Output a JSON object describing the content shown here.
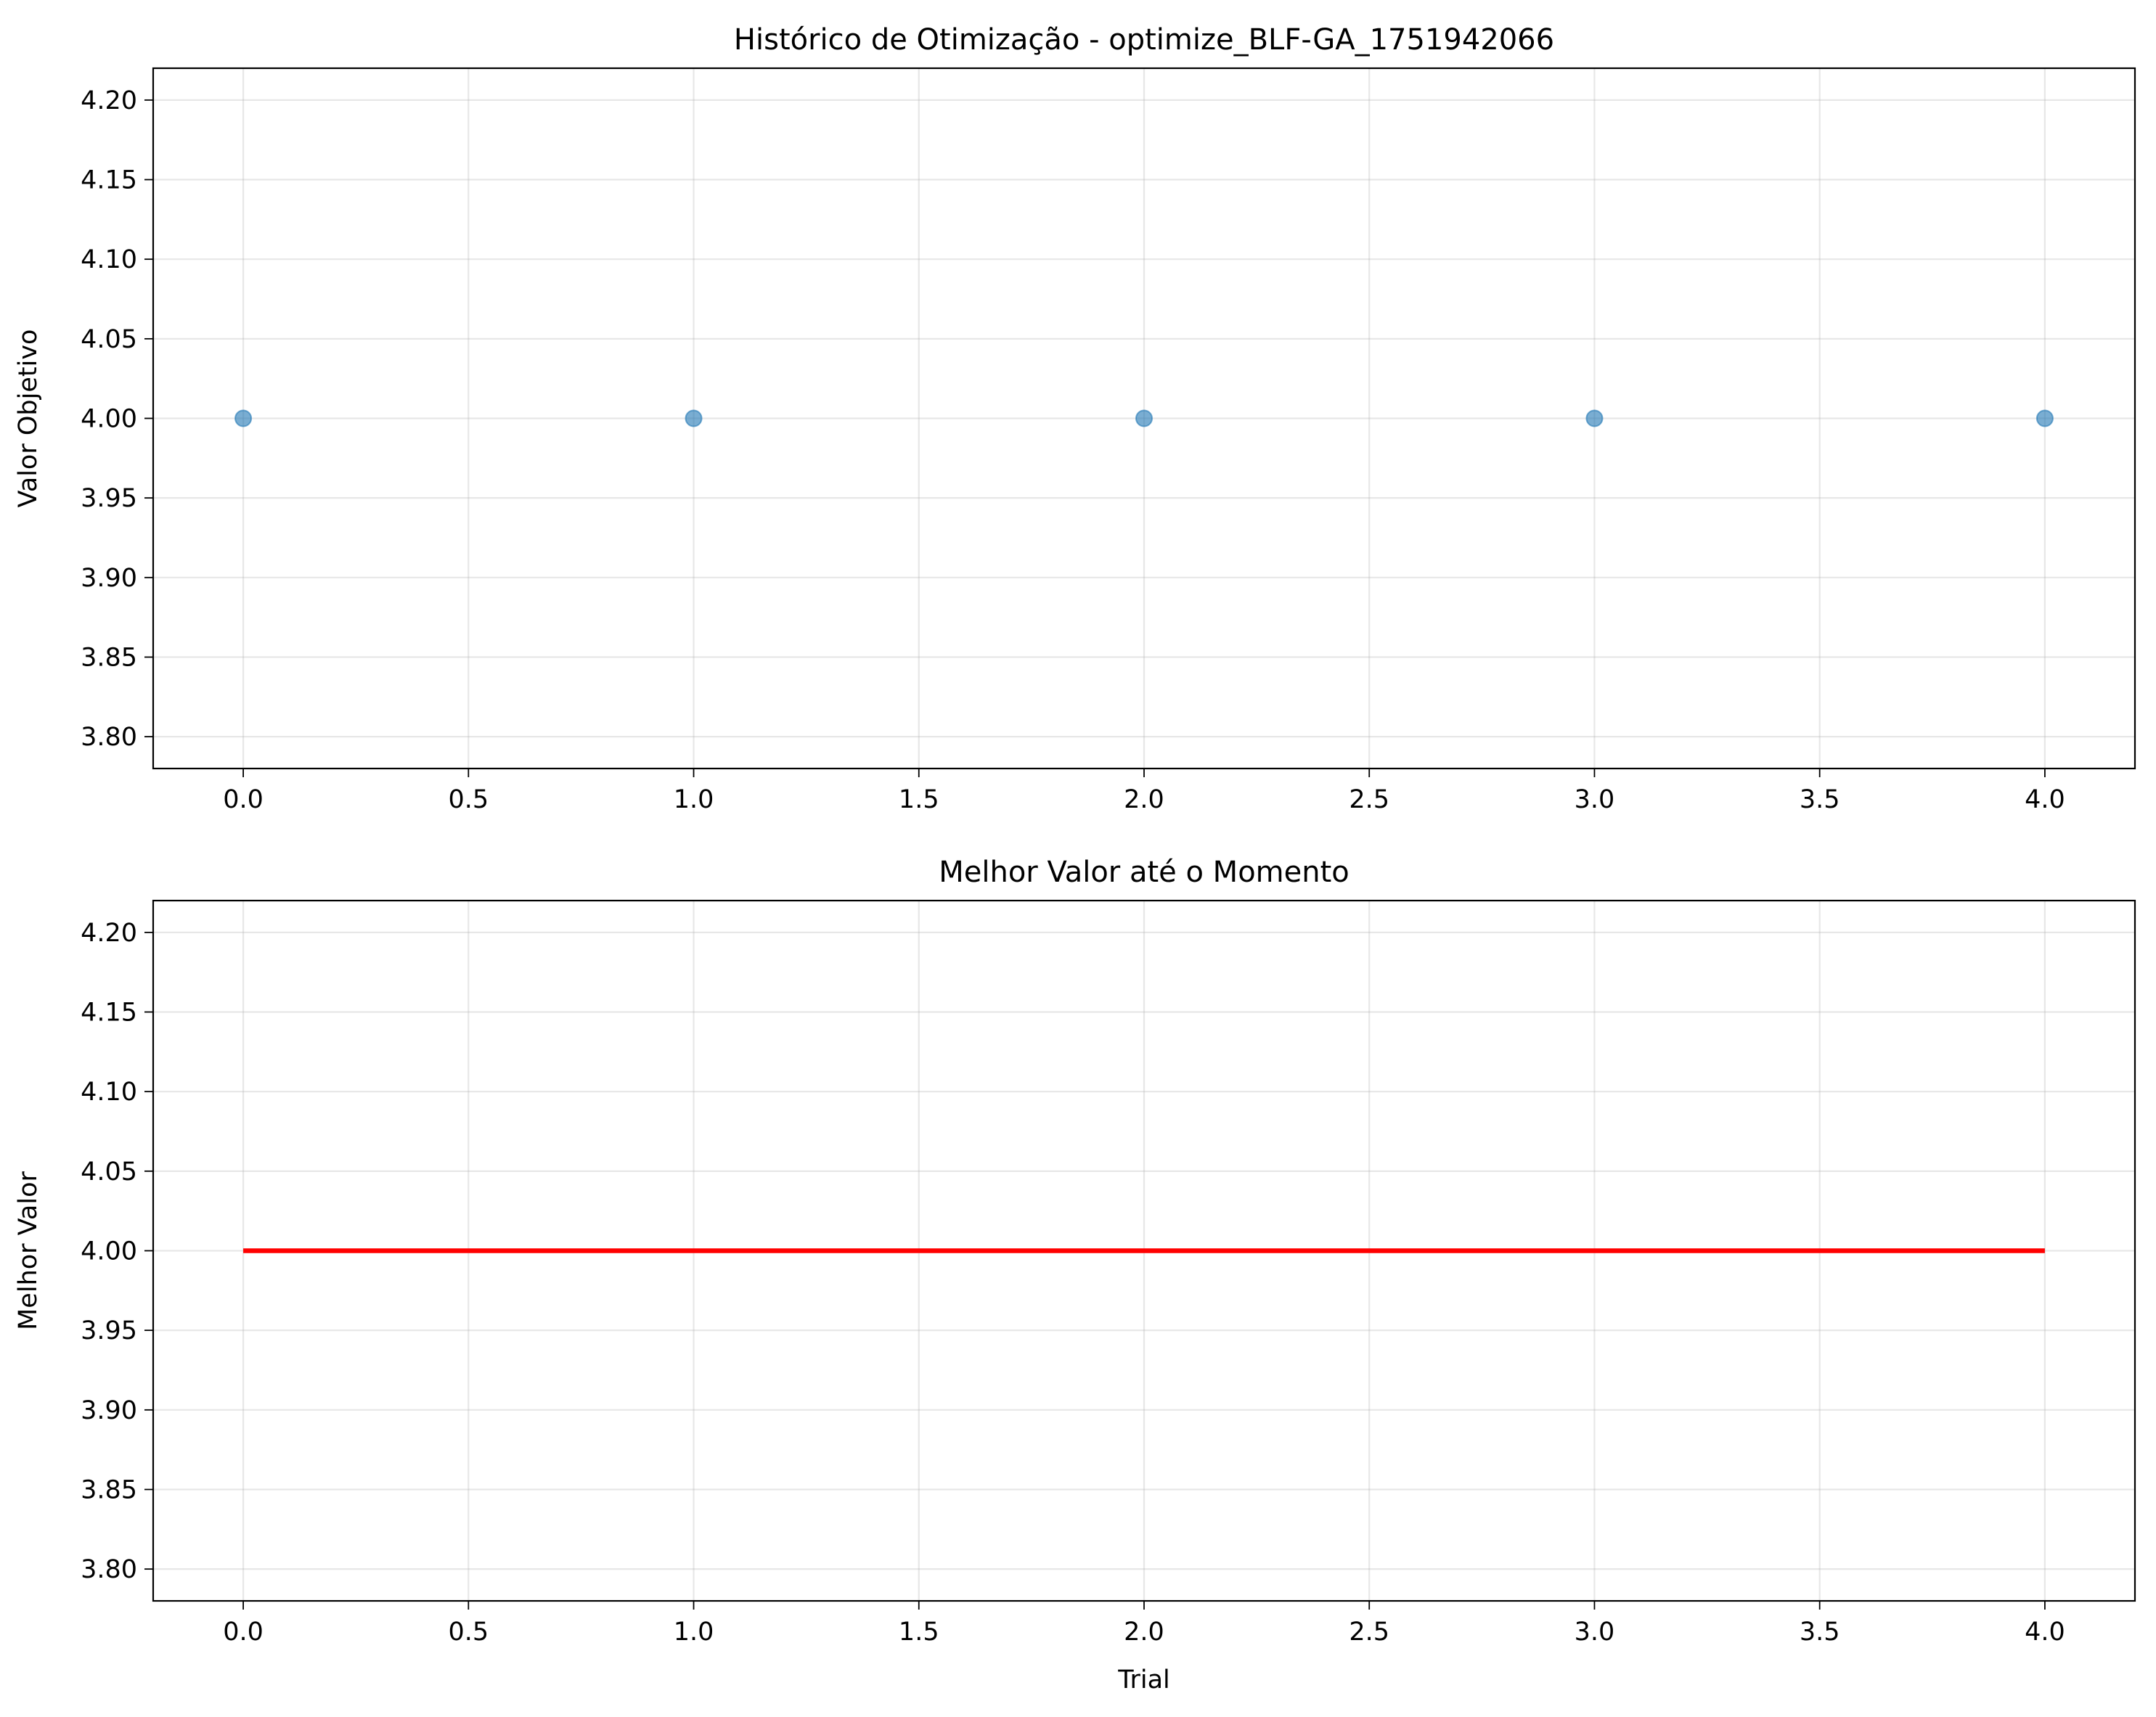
{
  "chart_data": [
    {
      "type": "scatter",
      "title": "Histórico de Otimização - optimize_BLF-GA_1751942066",
      "xlabel": "",
      "ylabel": "Valor Objetivo",
      "xlim": [
        -0.2,
        4.2
      ],
      "ylim": [
        3.78,
        4.22
      ],
      "xticks": [
        0.0,
        0.5,
        1.0,
        1.5,
        2.0,
        2.5,
        3.0,
        3.5,
        4.0
      ],
      "xtick_labels": [
        "0.0",
        "0.5",
        "1.0",
        "1.5",
        "2.0",
        "2.5",
        "3.0",
        "3.5",
        "4.0"
      ],
      "yticks": [
        3.8,
        3.85,
        3.9,
        3.95,
        4.0,
        4.05,
        4.1,
        4.15,
        4.2
      ],
      "ytick_labels": [
        "3.80",
        "3.85",
        "3.90",
        "3.95",
        "4.00",
        "4.05",
        "4.10",
        "4.15",
        "4.20"
      ],
      "grid": true,
      "series": [
        {
          "x": [
            0,
            1,
            2,
            3,
            4
          ],
          "values": [
            4.0,
            4.0,
            4.0,
            4.0,
            4.0
          ],
          "color": "#1f77b4",
          "opacity": 0.6
        }
      ]
    },
    {
      "type": "line",
      "title": "Melhor Valor até o Momento",
      "xlabel": "Trial",
      "ylabel": "Melhor Valor",
      "xlim": [
        -0.2,
        4.2
      ],
      "ylim": [
        3.78,
        4.22
      ],
      "xticks": [
        0.0,
        0.5,
        1.0,
        1.5,
        2.0,
        2.5,
        3.0,
        3.5,
        4.0
      ],
      "xtick_labels": [
        "0.0",
        "0.5",
        "1.0",
        "1.5",
        "2.0",
        "2.5",
        "3.0",
        "3.5",
        "4.0"
      ],
      "yticks": [
        3.8,
        3.85,
        3.9,
        3.95,
        4.0,
        4.05,
        4.1,
        4.15,
        4.2
      ],
      "ytick_labels": [
        "3.80",
        "3.85",
        "3.90",
        "3.95",
        "4.00",
        "4.05",
        "4.10",
        "4.15",
        "4.20"
      ],
      "grid": true,
      "series": [
        {
          "x": [
            0,
            1,
            2,
            3,
            4
          ],
          "values": [
            4.0,
            4.0,
            4.0,
            4.0,
            4.0
          ],
          "color": "#ff0000"
        }
      ]
    }
  ]
}
